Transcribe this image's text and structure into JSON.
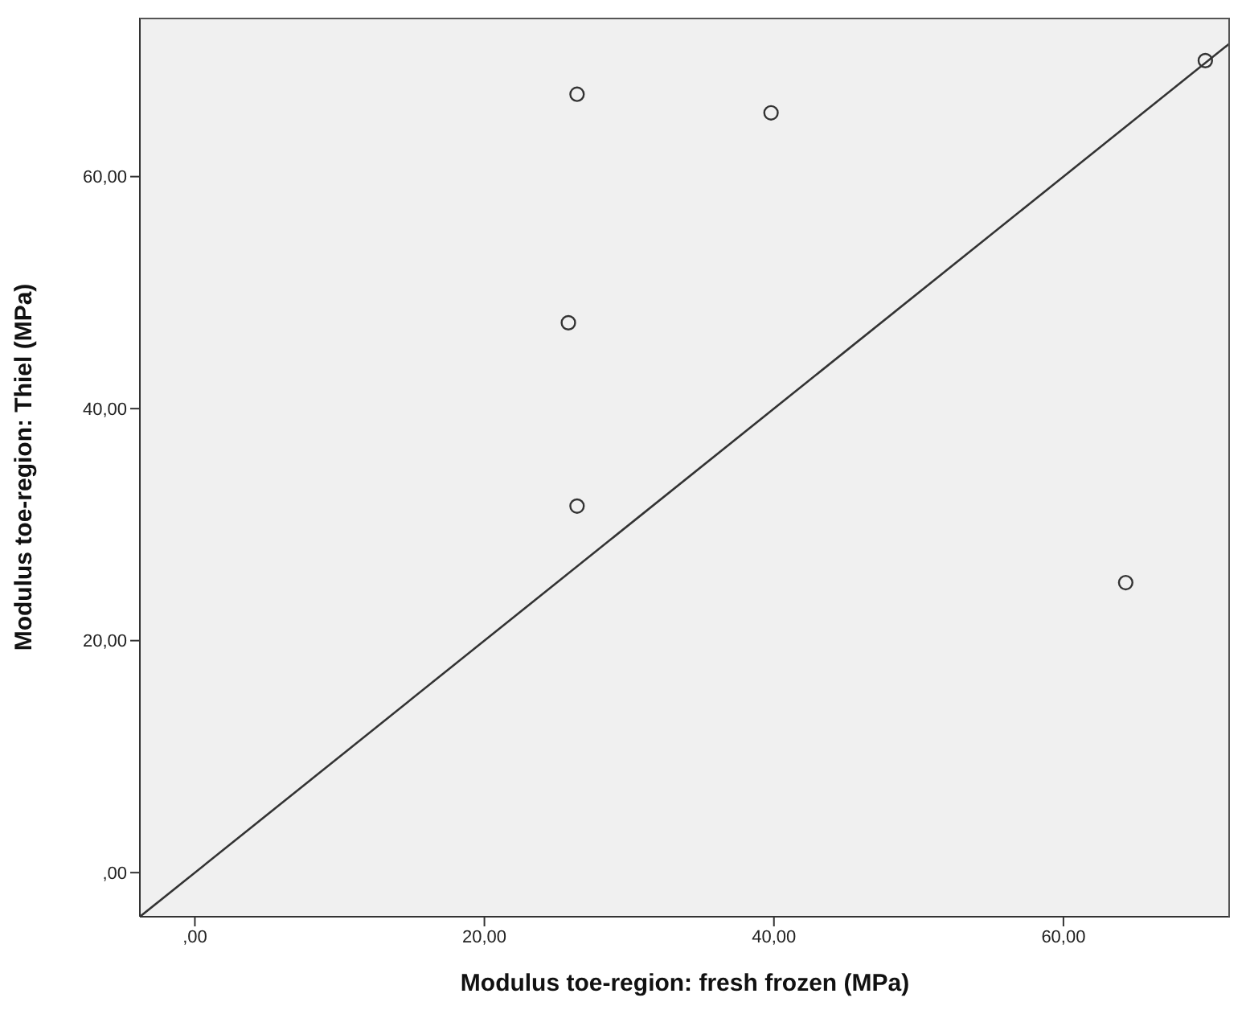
{
  "chart_data": {
    "type": "scatter",
    "xlabel": "Modulus toe-region: fresh frozen (MPa)",
    "ylabel": "Modulus toe-region: Thiel (MPa)",
    "xlim": [
      -3.8,
      71.5
    ],
    "ylim": [
      -3.8,
      73.7
    ],
    "xticks": [
      {
        "value": 0,
        "label": ",00"
      },
      {
        "value": 20,
        "label": "20,00"
      },
      {
        "value": 40,
        "label": "40,00"
      },
      {
        "value": 60,
        "label": "60,00"
      }
    ],
    "yticks": [
      {
        "value": 0,
        "label": ",00"
      },
      {
        "value": 20,
        "label": "20,00"
      },
      {
        "value": 40,
        "label": "40,00"
      },
      {
        "value": 60,
        "label": "60,00"
      }
    ],
    "grid": false,
    "legend": false,
    "series": [
      {
        "color": "#333333",
        "marker": "circle",
        "x": [
          26.4,
          39.8,
          69.8,
          25.8,
          26.4,
          64.3
        ],
        "values": [
          67.1,
          65.5,
          70.0,
          47.4,
          31.6,
          25.0
        ]
      },
      {
        "type": "line",
        "color": "#333333",
        "line_style": "solid",
        "marker": "none",
        "x": [
          -3.8,
          71.5
        ],
        "values": [
          -3.8,
          71.5
        ]
      }
    ]
  }
}
